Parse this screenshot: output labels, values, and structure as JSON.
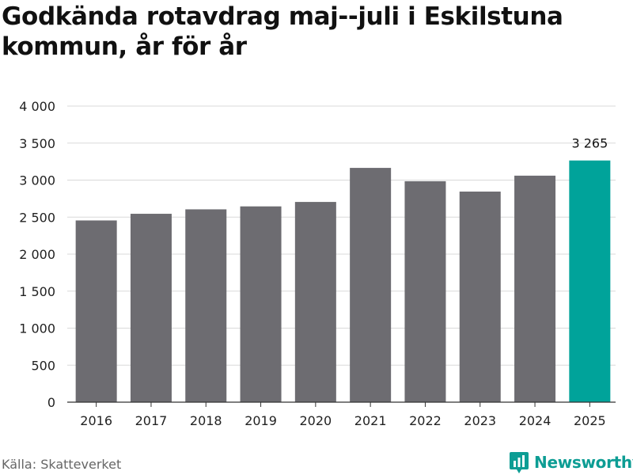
{
  "title": "Godkända rotavdrag maj--juli i Eskilstuna kommun, år för år",
  "source": "Källa: Skatteverket",
  "brand": {
    "name": "Newsworthy",
    "icon": "newsworthy-logo-icon"
  },
  "colors": {
    "bar": "#6d6c71",
    "highlight": "#00a39a",
    "grid": "#d9d9d9",
    "axis": "#333333"
  },
  "chart_data": {
    "type": "bar",
    "title": "Godkända rotavdrag maj--juli i Eskilstuna kommun, år för år",
    "xlabel": "",
    "ylabel": "",
    "categories": [
      "2016",
      "2017",
      "2018",
      "2019",
      "2020",
      "2021",
      "2022",
      "2023",
      "2024",
      "2025"
    ],
    "values": [
      2455,
      2545,
      2605,
      2645,
      2705,
      3165,
      2985,
      2845,
      3060,
      3265
    ],
    "highlight_index": 9,
    "data_labels": [
      {
        "index": 9,
        "text": "3 265"
      }
    ],
    "ylim": [
      0,
      4000
    ],
    "yticks": [
      0,
      500,
      1000,
      1500,
      2000,
      2500,
      3000,
      3500,
      4000
    ],
    "ytick_labels": [
      "0",
      "500",
      "1 000",
      "1 500",
      "2 000",
      "2 500",
      "3 000",
      "3 500",
      "4 000"
    ],
    "grid": true
  }
}
